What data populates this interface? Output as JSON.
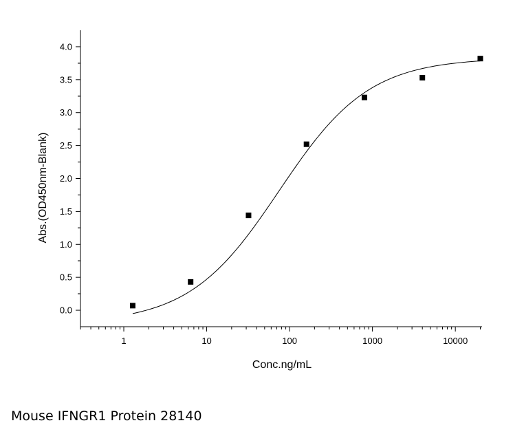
{
  "caption": "Mouse IFNGR1 Protein 28140",
  "chart_data": {
    "type": "scatter",
    "title": "",
    "xlabel": "Conc.ng/mL",
    "ylabel": "Abs.(OD450nm-Blank)",
    "x_scale": "log",
    "xlim": [
      0.3,
      21000
    ],
    "ylim": [
      -0.25,
      4.25
    ],
    "x_ticks": [
      1,
      10,
      100,
      1000,
      10000
    ],
    "x_tick_labels": [
      "1",
      "10",
      "100",
      "1000",
      "10000"
    ],
    "y_ticks": [
      0.0,
      0.5,
      1.0,
      1.5,
      2.0,
      2.5,
      3.0,
      3.5,
      4.0
    ],
    "y_tick_labels": [
      "0.0",
      "0.5",
      "1.0",
      "1.5",
      "2.0",
      "2.5",
      "3.0",
      "3.5",
      "4.0"
    ],
    "grid": false,
    "series": [
      {
        "marker": "square",
        "color": "#000000",
        "x": [
          1.28,
          6.4,
          32,
          160,
          800,
          4000,
          20000
        ],
        "y": [
          0.07,
          0.43,
          1.44,
          2.52,
          3.23,
          3.53,
          3.82
        ]
      }
    ],
    "fit_curve": {
      "type": "4PL",
      "color": "#000000",
      "bottom": -0.2,
      "top": 3.83,
      "ec50": 75,
      "hill": 0.8
    }
  }
}
